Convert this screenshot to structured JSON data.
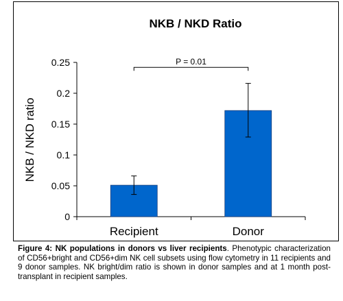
{
  "chart_data": {
    "type": "bar",
    "title": "NKB / NKD Ratio",
    "ylabel": "NKB / NKD ratio",
    "xlabel": "",
    "categories": [
      "Recipient",
      "Donor"
    ],
    "values": [
      0.051,
      0.172
    ],
    "error_low": [
      0.036,
      0.129
    ],
    "error_high": [
      0.066,
      0.216
    ],
    "ylim": [
      0,
      0.25
    ],
    "yticks": [
      0,
      0.05,
      0.1,
      0.15,
      0.2,
      0.25
    ],
    "ytick_labels": [
      "0",
      "0.05",
      "0.1",
      "0.15",
      "0.2",
      "0.25"
    ],
    "grid": false,
    "bar_color": "#0066cc",
    "annotation": {
      "text": "P = 0.01",
      "from": "Recipient",
      "to": "Donor",
      "y": 0.242
    }
  },
  "caption": {
    "label": "Figure 4: NK populations in donors vs liver recipients",
    "text": ". Phenotypic characterization of CD56+bright and CD56+dim NK cell subsets using flow cytometry in 11 recipients and 9 donor samples.  NK bright/dim ratio is shown in donor samples and at 1 month post-transplant in recipient samples."
  }
}
